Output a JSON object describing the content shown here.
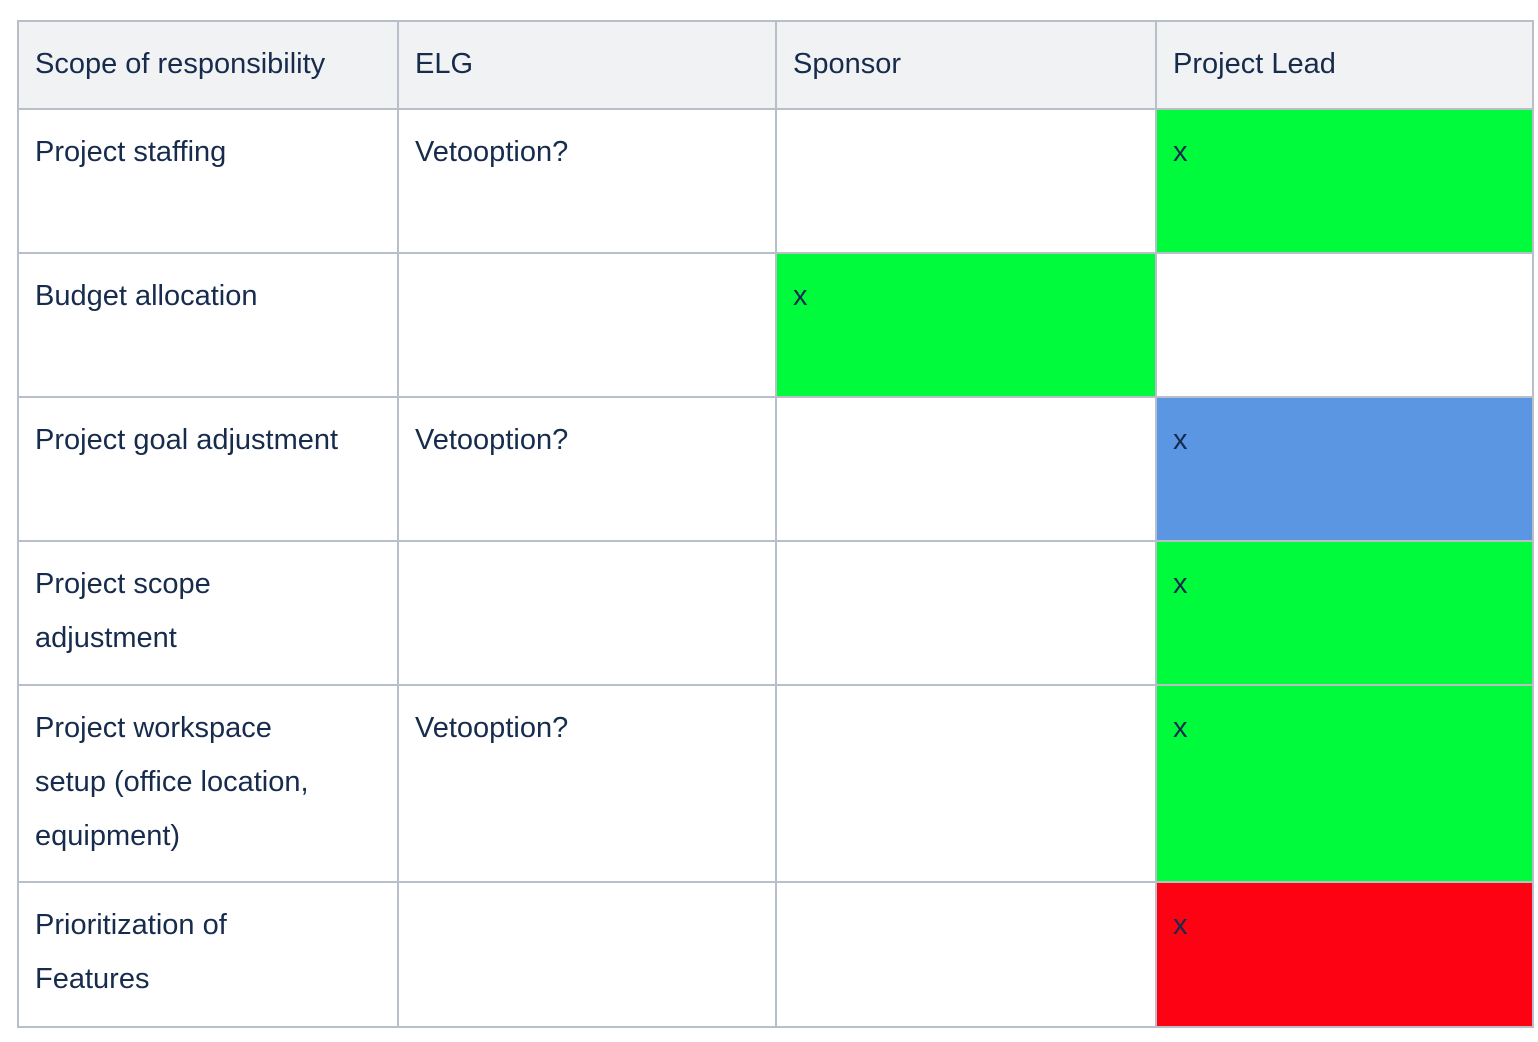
{
  "colors": {
    "green": "#00fa3c",
    "blue": "#5a96e2",
    "red": "#fd0212",
    "header_bg": "#f1f2f3",
    "border": "#b8bfc9",
    "text": "#172b4d",
    "page_bg": "#ffffff"
  },
  "table": {
    "headers": [
      "Scope of responsibility",
      "ELG",
      "Sponsor",
      "Project Lead"
    ],
    "rows": [
      {
        "cells": [
          {
            "text": "Project staffing",
            "bg": "none"
          },
          {
            "text": "Vetooption?",
            "bg": "none"
          },
          {
            "text": "",
            "bg": "none"
          },
          {
            "text": "x",
            "bg": "green"
          }
        ]
      },
      {
        "cells": [
          {
            "text": "Budget allocation",
            "bg": "none"
          },
          {
            "text": "",
            "bg": "none"
          },
          {
            "text": "x",
            "bg": "green"
          },
          {
            "text": "",
            "bg": "none"
          }
        ]
      },
      {
        "cells": [
          {
            "text": "Project goal adjustment",
            "bg": "none"
          },
          {
            "text": "Vetooption?",
            "bg": "none"
          },
          {
            "text": "",
            "bg": "none"
          },
          {
            "text": "x",
            "bg": "blue"
          }
        ]
      },
      {
        "cells": [
          {
            "text": "Project scope adjustment",
            "bg": "none"
          },
          {
            "text": "",
            "bg": "none"
          },
          {
            "text": "",
            "bg": "none"
          },
          {
            "text": "x",
            "bg": "green"
          }
        ]
      },
      {
        "cells": [
          {
            "text": "Project workspace setup (office location, equipment)",
            "bg": "none"
          },
          {
            "text": "Vetooption?",
            "bg": "none"
          },
          {
            "text": "",
            "bg": "none"
          },
          {
            "text": "x",
            "bg": "green"
          }
        ]
      },
      {
        "cells": [
          {
            "text": "Prioritization of Features",
            "bg": "none"
          },
          {
            "text": "",
            "bg": "none"
          },
          {
            "text": "",
            "bg": "none"
          },
          {
            "text": "x",
            "bg": "red"
          }
        ]
      }
    ]
  }
}
